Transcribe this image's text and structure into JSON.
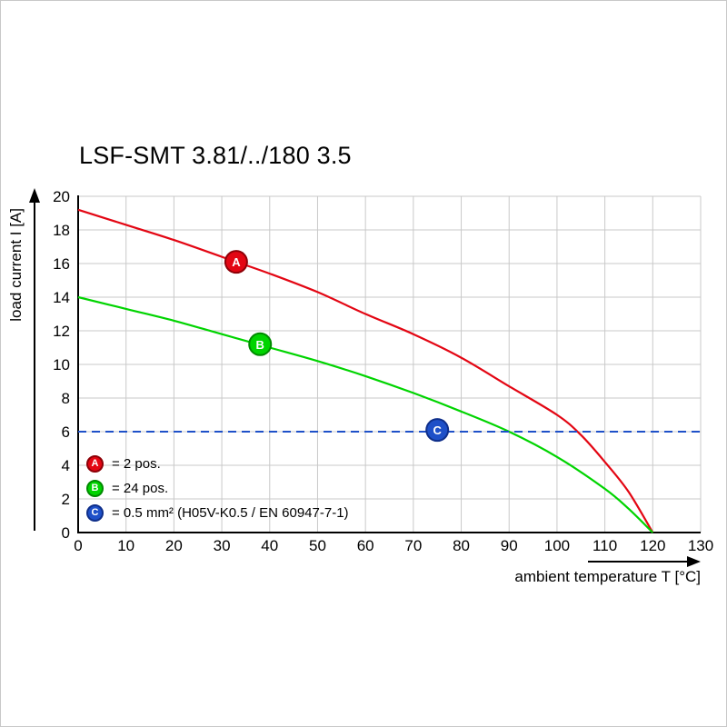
{
  "title": "LSF-SMT 3.81/../180 3.5",
  "colors": {
    "grid": "#c9c9c9",
    "axis": "#000000",
    "background": "#ffffff",
    "red": "#e30613",
    "red_dark": "#8d0007",
    "green": "#00d400",
    "green_dark": "#008a00",
    "blue": "#1e50c8",
    "blue_dark": "#0f2f8a"
  },
  "chart_data": {
    "type": "line",
    "title": "LSF-SMT 3.81/../180 3.5",
    "xlabel": "ambient temperature T [°C]",
    "ylabel": "load current I [A]",
    "xlim": [
      0,
      130
    ],
    "ylim": [
      0,
      20
    ],
    "xticks": [
      0,
      10,
      20,
      30,
      40,
      50,
      60,
      70,
      80,
      90,
      100,
      110,
      120,
      130
    ],
    "yticks": [
      0,
      2,
      4,
      6,
      8,
      10,
      12,
      14,
      16,
      18,
      20
    ],
    "grid": true,
    "legend_position": "lower-left",
    "series": [
      {
        "name": "A",
        "label": "= 2 pos.",
        "color": "#e30613",
        "edge_color": "#8d0007",
        "style": "solid",
        "marker_at": {
          "x": 33,
          "y": 16.1
        },
        "points": [
          [
            0,
            19.2
          ],
          [
            10,
            18.3
          ],
          [
            20,
            17.4
          ],
          [
            30,
            16.4
          ],
          [
            40,
            15.4
          ],
          [
            50,
            14.3
          ],
          [
            60,
            13.0
          ],
          [
            70,
            11.8
          ],
          [
            80,
            10.4
          ],
          [
            90,
            8.7
          ],
          [
            100,
            7.0
          ],
          [
            105,
            5.8
          ],
          [
            110,
            4.2
          ],
          [
            115,
            2.4
          ],
          [
            120,
            0
          ]
        ]
      },
      {
        "name": "B",
        "label": "= 24 pos.",
        "color": "#00d400",
        "edge_color": "#008a00",
        "style": "solid",
        "marker_at": {
          "x": 38,
          "y": 11.2
        },
        "points": [
          [
            0,
            14.0
          ],
          [
            10,
            13.3
          ],
          [
            20,
            12.6
          ],
          [
            30,
            11.8
          ],
          [
            40,
            11.0
          ],
          [
            50,
            10.2
          ],
          [
            60,
            9.3
          ],
          [
            70,
            8.3
          ],
          [
            80,
            7.2
          ],
          [
            90,
            6.0
          ],
          [
            100,
            4.5
          ],
          [
            110,
            2.6
          ],
          [
            115,
            1.4
          ],
          [
            120,
            0
          ]
        ]
      },
      {
        "name": "C",
        "label": "= 0.5 mm² (H05V-K0.5 / EN 60947-7-1)",
        "color": "#1e50c8",
        "edge_color": "#0f2f8a",
        "style": "dashed",
        "marker_at": {
          "x": 75,
          "y": 6.1
        },
        "points": [
          [
            0,
            6
          ],
          [
            130,
            6
          ]
        ]
      }
    ]
  }
}
